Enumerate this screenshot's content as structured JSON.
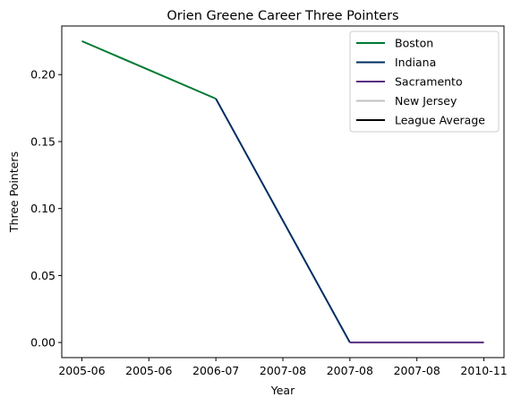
{
  "chart_data": {
    "type": "line",
    "title": "Orien Greene Career Three Pointers",
    "xlabel": "Year",
    "ylabel": "Three Pointers",
    "x_tick_labels": [
      "2005-06",
      "2005-06",
      "2006-07",
      "2007-08",
      "2007-08",
      "2007-08",
      "2010-11"
    ],
    "x_tick_positions": [
      0,
      1,
      2,
      3,
      4,
      5,
      6
    ],
    "y_ticks": [
      0.0,
      0.05,
      0.1,
      0.15,
      0.2
    ],
    "y_tick_labels": [
      "0.00",
      "0.05",
      "0.10",
      "0.15",
      "0.20"
    ],
    "xlim": [
      -0.3,
      6.3
    ],
    "ylim": [
      -0.0113,
      0.2363
    ],
    "grid": false,
    "legend_position": "top-right",
    "series": [
      {
        "name": "Boston",
        "color": "#007A33",
        "x": [
          0,
          2
        ],
        "y": [
          0.225,
          0.182
        ]
      },
      {
        "name": "Indiana",
        "color": "#002D62",
        "x": [
          2,
          4
        ],
        "y": [
          0.182,
          0.0
        ]
      },
      {
        "name": "Sacramento",
        "color": "#5A2D81",
        "x": [
          4,
          6
        ],
        "y": [
          0.0,
          0.0
        ]
      },
      {
        "name": "New Jersey",
        "color": "#BEC0C2",
        "x": [],
        "y": []
      },
      {
        "name": "League Average",
        "color": "#000000",
        "x": [],
        "y": []
      }
    ]
  }
}
